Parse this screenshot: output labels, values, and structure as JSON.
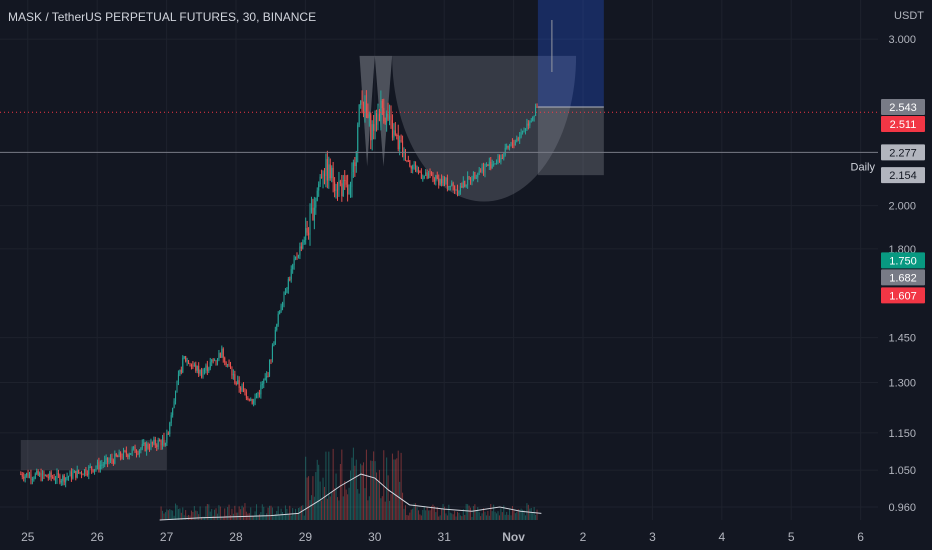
{
  "header": {
    "symbol_title": "MASK / TetherUS PERPETUAL FUTURES, 30, BINANCE",
    "currency": "USDT"
  },
  "colors": {
    "background": "#131722",
    "grid": "#1e222d",
    "up": "#26a69a",
    "down": "#ef5350",
    "axis_text": "#b2b5be",
    "pattern_fill": "#9598a1",
    "position_fill": "#2962ff"
  },
  "chart_data": {
    "type": "candlestick",
    "title": "MASK / TetherUS PERPETUAL FUTURES, 30, BINANCE",
    "y_axis": {
      "scale": "log",
      "unit": "USDT",
      "range": [
        0.93,
        3.3
      ],
      "ticks": [
        3.0,
        2.0,
        1.8,
        1.45,
        1.3,
        1.15,
        1.05,
        0.96
      ]
    },
    "x_axis": {
      "range_days": [
        24.9,
        37.0
      ],
      "ticks": [
        {
          "label": "25",
          "day": 25
        },
        {
          "label": "26",
          "day": 26
        },
        {
          "label": "27",
          "day": 27
        },
        {
          "label": "28",
          "day": 28
        },
        {
          "label": "29",
          "day": 29
        },
        {
          "label": "30",
          "day": 30
        },
        {
          "label": "31",
          "day": 31
        },
        {
          "label": "Nov",
          "day": 32
        },
        {
          "label": "2",
          "day": 33
        },
        {
          "label": "3",
          "day": 34
        },
        {
          "label": "4",
          "day": 35
        },
        {
          "label": "5",
          "day": 36
        },
        {
          "label": "6",
          "day": 37
        }
      ]
    },
    "approx_price_path": [
      [
        24.9,
        1.04
      ],
      [
        25.5,
        1.03
      ],
      [
        26.0,
        1.06
      ],
      [
        26.5,
        1.1
      ],
      [
        27.0,
        1.13
      ],
      [
        27.1,
        1.25
      ],
      [
        27.25,
        1.38
      ],
      [
        27.5,
        1.33
      ],
      [
        27.8,
        1.4
      ],
      [
        28.0,
        1.3
      ],
      [
        28.25,
        1.24
      ],
      [
        28.45,
        1.32
      ],
      [
        28.65,
        1.58
      ],
      [
        28.85,
        1.75
      ],
      [
        29.05,
        1.9
      ],
      [
        29.25,
        2.2
      ],
      [
        29.5,
        2.1
      ],
      [
        29.65,
        2.05
      ],
      [
        29.8,
        2.6
      ],
      [
        29.95,
        2.4
      ],
      [
        30.1,
        2.55
      ],
      [
        30.3,
        2.35
      ],
      [
        30.5,
        2.22
      ],
      [
        30.7,
        2.15
      ],
      [
        31.0,
        2.12
      ],
      [
        31.2,
        2.08
      ],
      [
        31.5,
        2.18
      ],
      [
        31.8,
        2.24
      ],
      [
        32.1,
        2.38
      ],
      [
        32.35,
        2.54
      ]
    ],
    "horizontal_lines": [
      {
        "price": 2.511,
        "color": "#f23645",
        "style": "dotted"
      },
      {
        "price": 2.277,
        "color": "#787b86",
        "style": "solid"
      }
    ],
    "price_labels": [
      {
        "text": "2.543",
        "price": 2.543,
        "bg": "#787b86"
      },
      {
        "text": "2.511",
        "price": 2.511,
        "bg": "#f23645"
      },
      {
        "text": "2.277",
        "price": 2.277,
        "bg": "#b2b5be"
      },
      {
        "text": "2.154",
        "price": 2.154,
        "bg": "#b2b5be"
      },
      {
        "text": "1.750",
        "price": 1.75,
        "bg": "#089981"
      },
      {
        "text": "1.682",
        "price": 1.682,
        "bg": "#787b86"
      },
      {
        "text": "1.607",
        "price": 1.607,
        "bg": "#f23645"
      }
    ],
    "annotations": [
      {
        "text": "Daily",
        "price": 2.2
      }
    ],
    "drawings": {
      "double_top_triangles": {
        "top": 2.88,
        "bottom": 2.2,
        "day_start": 29.78,
        "day_mid": 30.0,
        "day_end": 30.25
      },
      "rounded_cup": {
        "top": 2.88,
        "bottom": 2.02,
        "day_start": 30.25,
        "day_end": 32.9
      },
      "base_box": {
        "top": 1.13,
        "bottom": 1.05,
        "day_start": 24.9,
        "day_end": 27.0
      },
      "long_position": {
        "entry": 2.543,
        "target": 3.3,
        "stop": 2.154,
        "day_start": 32.35,
        "day_end": 33.3
      }
    },
    "volume_profile_line": [
      [
        26.9,
        0.93
      ],
      [
        27.5,
        0.935
      ],
      [
        28.5,
        0.94
      ],
      [
        28.9,
        0.945
      ],
      [
        29.2,
        0.975
      ],
      [
        29.5,
        1.01
      ],
      [
        29.8,
        1.04
      ],
      [
        30.0,
        1.03
      ],
      [
        30.2,
        1.0
      ],
      [
        30.5,
        0.965
      ],
      [
        31.0,
        0.955
      ],
      [
        31.4,
        0.95
      ],
      [
        31.8,
        0.96
      ],
      [
        32.1,
        0.95
      ],
      [
        32.4,
        0.945
      ]
    ]
  }
}
